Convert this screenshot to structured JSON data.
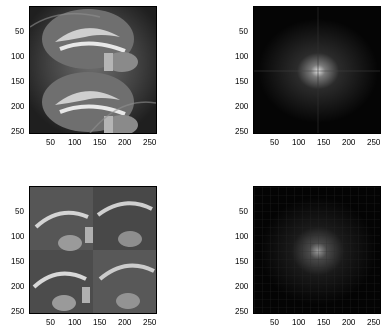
{
  "figure": {
    "panels": [
      {
        "id": "top-left",
        "image": "grayscale sagittal brain MRI montage (tiled)",
        "y_ticks": [
          "50",
          "100",
          "150",
          "200",
          "250"
        ],
        "x_ticks": [
          "50",
          "100",
          "150",
          "200",
          "250"
        ]
      },
      {
        "id": "top-right",
        "image": "2D Fourier magnitude spectrum (dark with bright center)",
        "y_ticks": [
          "50",
          "100",
          "150",
          "200",
          "250"
        ],
        "x_ticks": [
          "50",
          "100",
          "150",
          "200",
          "250"
        ]
      },
      {
        "id": "bottom-left",
        "image": "grayscale brain MRI mosaic (rearranged tiles)",
        "y_ticks": [
          "50",
          "100",
          "150",
          "200",
          "250"
        ],
        "x_ticks": [
          "50",
          "100",
          "150",
          "200",
          "250"
        ]
      },
      {
        "id": "bottom-right",
        "image": "2D Fourier magnitude spectrum (dark with faint grid)",
        "y_ticks": [
          "50",
          "100",
          "150",
          "200",
          "250"
        ],
        "x_ticks": [
          "50",
          "100",
          "150",
          "200",
          "250"
        ]
      }
    ]
  }
}
